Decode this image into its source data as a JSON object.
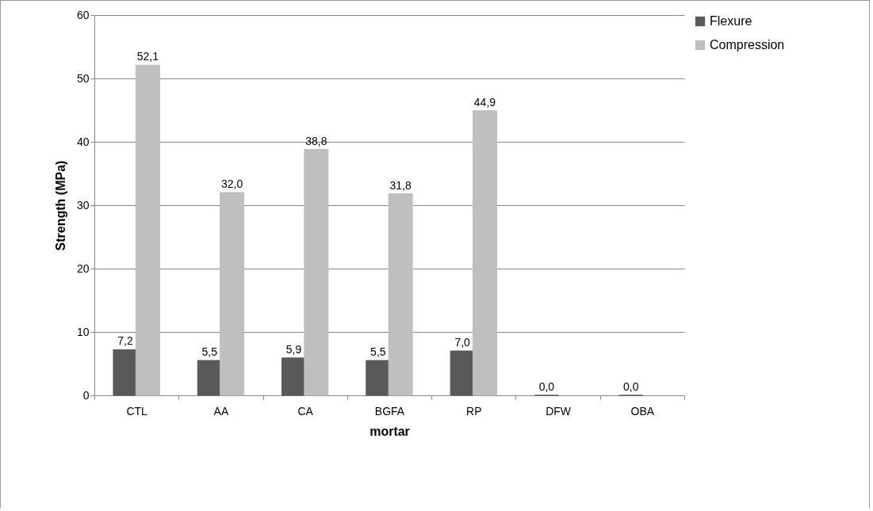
{
  "chart_data": {
    "type": "bar",
    "xlabel": "mortar",
    "ylabel": "Strength (MPa)",
    "categories": [
      "CTL",
      "AA",
      "CA",
      "BGFA",
      "RP",
      "DFW",
      "OBA"
    ],
    "series": [
      {
        "name": "Flexure",
        "color": "#595959",
        "values": [
          7.2,
          5.5,
          5.9,
          5.5,
          7.0,
          0.0,
          0.0
        ],
        "value_labels": [
          "7,2",
          "5,5",
          "5,9",
          "5,5",
          "7,0",
          "0,0",
          "0,0"
        ]
      },
      {
        "name": "Compression",
        "color": "#bfbfbf",
        "values": [
          52.1,
          32.0,
          38.8,
          31.8,
          44.9,
          null,
          null
        ],
        "value_labels": [
          "52,1",
          "32,0",
          "38,8",
          "31,8",
          "44,9",
          null,
          null
        ]
      }
    ],
    "ylim": [
      0,
      60
    ],
    "yticks": [
      0,
      10,
      20,
      30,
      40,
      50,
      60
    ],
    "grid": "y",
    "legend": "right"
  }
}
